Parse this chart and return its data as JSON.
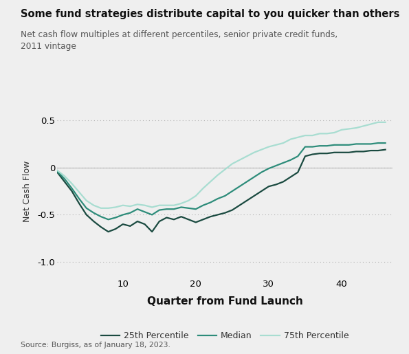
{
  "title": "Some fund strategies distribute capital to you quicker than others",
  "subtitle": "Net cash flow multiples at different percentiles, senior private credit funds,\n2011 vintage",
  "xlabel": "Quarter from Fund Launch",
  "ylabel": "Net Cash Flow",
  "source": "Source: Burgiss, as of January 18, 2023.",
  "background_color": "#efefef",
  "ylim": [
    -1.15,
    0.65
  ],
  "xlim": [
    1,
    47
  ],
  "yticks": [
    -1.0,
    -0.5,
    0,
    0.5
  ],
  "xticks": [
    10,
    20,
    30,
    40
  ],
  "color_25th": "#1a4a40",
  "color_median": "#2d8c7a",
  "color_75th": "#a8ddd1",
  "legend_labels": [
    "25th Percentile",
    "Median",
    "75th Percentile"
  ],
  "p25_x": [
    1,
    2,
    3,
    4,
    5,
    6,
    7,
    8,
    9,
    10,
    11,
    12,
    13,
    14,
    15,
    16,
    17,
    18,
    19,
    20,
    21,
    22,
    23,
    24,
    25,
    26,
    27,
    28,
    29,
    30,
    31,
    32,
    33,
    34,
    35,
    36,
    37,
    38,
    39,
    40,
    41,
    42,
    43,
    44,
    45,
    46
  ],
  "p25_y": [
    -0.05,
    -0.15,
    -0.25,
    -0.38,
    -0.5,
    -0.57,
    -0.63,
    -0.68,
    -0.65,
    -0.6,
    -0.62,
    -0.57,
    -0.6,
    -0.68,
    -0.57,
    -0.53,
    -0.55,
    -0.52,
    -0.55,
    -0.58,
    -0.55,
    -0.52,
    -0.5,
    -0.48,
    -0.45,
    -0.4,
    -0.35,
    -0.3,
    -0.25,
    -0.2,
    -0.18,
    -0.15,
    -0.1,
    -0.05,
    0.12,
    0.14,
    0.15,
    0.15,
    0.16,
    0.16,
    0.16,
    0.17,
    0.17,
    0.18,
    0.18,
    0.19
  ],
  "median_x": [
    1,
    2,
    3,
    4,
    5,
    6,
    7,
    8,
    9,
    10,
    11,
    12,
    13,
    14,
    15,
    16,
    17,
    18,
    19,
    20,
    21,
    22,
    23,
    24,
    25,
    26,
    27,
    28,
    29,
    30,
    31,
    32,
    33,
    34,
    35,
    36,
    37,
    38,
    39,
    40,
    41,
    42,
    43,
    44,
    45,
    46
  ],
  "median_y": [
    -0.04,
    -0.12,
    -0.22,
    -0.33,
    -0.43,
    -0.48,
    -0.52,
    -0.55,
    -0.53,
    -0.5,
    -0.48,
    -0.44,
    -0.47,
    -0.5,
    -0.45,
    -0.44,
    -0.44,
    -0.42,
    -0.43,
    -0.44,
    -0.4,
    -0.37,
    -0.33,
    -0.3,
    -0.25,
    -0.2,
    -0.15,
    -0.1,
    -0.05,
    -0.01,
    0.02,
    0.05,
    0.08,
    0.12,
    0.22,
    0.22,
    0.23,
    0.23,
    0.24,
    0.24,
    0.24,
    0.25,
    0.25,
    0.25,
    0.26,
    0.26
  ],
  "p75_x": [
    1,
    2,
    3,
    4,
    5,
    6,
    7,
    8,
    9,
    10,
    11,
    12,
    13,
    14,
    15,
    16,
    17,
    18,
    19,
    20,
    21,
    22,
    23,
    24,
    25,
    26,
    27,
    28,
    29,
    30,
    31,
    32,
    33,
    34,
    35,
    36,
    37,
    38,
    39,
    40,
    41,
    42,
    43,
    44,
    45,
    46
  ],
  "p75_y": [
    -0.03,
    -0.09,
    -0.17,
    -0.26,
    -0.35,
    -0.4,
    -0.43,
    -0.43,
    -0.42,
    -0.4,
    -0.41,
    -0.39,
    -0.4,
    -0.42,
    -0.4,
    -0.4,
    -0.4,
    -0.38,
    -0.35,
    -0.3,
    -0.22,
    -0.15,
    -0.08,
    -0.02,
    0.04,
    0.08,
    0.12,
    0.16,
    0.19,
    0.22,
    0.24,
    0.26,
    0.3,
    0.32,
    0.34,
    0.34,
    0.36,
    0.36,
    0.37,
    0.4,
    0.41,
    0.42,
    0.44,
    0.46,
    0.48,
    0.48
  ]
}
